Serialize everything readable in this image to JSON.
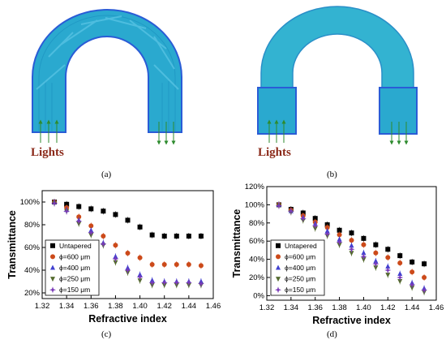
{
  "panel_labels": [
    "(a)",
    "(b)",
    "(c)",
    "(d)"
  ],
  "lights_labels": [
    "Lights",
    "Lights"
  ],
  "colors": {
    "fiber_light": "#2aa9cf",
    "fiber_dark": "#1a7fb3",
    "fiber_edge": "#2a5cd6",
    "arrow": "#2e8b2e",
    "lights_text": "#8b2a1a"
  },
  "chart_data": [
    {
      "type": "scatter",
      "panel": "(c)",
      "xlabel": "Refractive index",
      "ylabel": "Transmittance",
      "xlim": [
        1.32,
        1.46
      ],
      "ylim": [
        15,
        110
      ],
      "x_ticks": [
        "1.32",
        "1.34",
        "1.36",
        "1.38",
        "1.40",
        "1.42",
        "1.44",
        "1.46"
      ],
      "y_ticks": [
        "20%",
        "40%",
        "60%",
        "80%",
        "100%"
      ],
      "y_tick_values": [
        20,
        40,
        60,
        80,
        100
      ],
      "legend_position": "bottom-left",
      "x": [
        1.33,
        1.34,
        1.35,
        1.36,
        1.37,
        1.38,
        1.39,
        1.4,
        1.41,
        1.42,
        1.43,
        1.44,
        1.45
      ],
      "series": [
        {
          "name": "Untapered",
          "marker": "square",
          "color": "#000000",
          "values": [
            100,
            98,
            96,
            94,
            92,
            89,
            84,
            78,
            71,
            70,
            70,
            70,
            70
          ]
        },
        {
          "name": "ϕ=600 μm",
          "marker": "circle",
          "color": "#cc4a1a",
          "values": [
            100,
            95,
            87,
            79,
            70,
            62,
            55,
            51,
            45,
            45,
            45,
            45,
            44
          ]
        },
        {
          "name": "ϕ=400 μm",
          "marker": "triangle-up",
          "color": "#4040d0",
          "values": [
            100,
            93,
            84,
            75,
            64,
            52,
            42,
            36,
            31,
            30,
            30,
            30,
            30
          ]
        },
        {
          "name": "ϕ=250 μm",
          "marker": "triangle-down",
          "color": "#556b2f",
          "values": [
            99,
            92,
            81,
            71,
            62,
            47,
            38,
            31,
            27,
            27,
            27,
            27,
            27
          ]
        },
        {
          "name": "ϕ=150 μm",
          "marker": "star",
          "color": "#7a3ab8",
          "values": [
            99,
            92,
            83,
            73,
            63,
            50,
            40,
            34,
            29,
            29,
            29,
            29,
            28
          ]
        }
      ]
    },
    {
      "type": "scatter",
      "panel": "(d)",
      "xlabel": "Refractive index",
      "ylabel": "Transmittance",
      "xlim": [
        1.32,
        1.46
      ],
      "ylim": [
        -5,
        120
      ],
      "x_ticks": [
        "1.32",
        "1.34",
        "1.36",
        "1.38",
        "1.40",
        "1.42",
        "1.44",
        "1.46"
      ],
      "y_ticks": [
        "0%",
        "20%",
        "40%",
        "60%",
        "80%",
        "100%",
        "120%"
      ],
      "y_tick_values": [
        0,
        20,
        40,
        60,
        80,
        100,
        120
      ],
      "legend_position": "bottom-left",
      "x": [
        1.33,
        1.34,
        1.35,
        1.36,
        1.37,
        1.38,
        1.39,
        1.4,
        1.41,
        1.42,
        1.43,
        1.44,
        1.45
      ],
      "series": [
        {
          "name": "Untapered",
          "marker": "square",
          "color": "#000000",
          "values": [
            100,
            95,
            91,
            85,
            78,
            72,
            69,
            63,
            56,
            51,
            44,
            37,
            35
          ]
        },
        {
          "name": "ϕ=600 μm",
          "marker": "circle",
          "color": "#cc4a1a",
          "values": [
            100,
            94,
            88,
            81,
            75,
            67,
            61,
            56,
            47,
            42,
            36,
            26,
            20
          ]
        },
        {
          "name": "ϕ=400 μm",
          "marker": "triangle-up",
          "color": "#4040d0",
          "values": [
            100,
            93,
            86,
            79,
            71,
            62,
            55,
            47,
            38,
            32,
            24,
            14,
            8
          ]
        },
        {
          "name": "ϕ=250 μm",
          "marker": "triangle-down",
          "color": "#556b2f",
          "values": [
            99,
            92,
            83,
            74,
            66,
            56,
            47,
            40,
            31,
            23,
            16,
            9,
            4
          ]
        },
        {
          "name": "ϕ=150 μm",
          "marker": "star",
          "color": "#7a3ab8",
          "values": [
            99,
            93,
            85,
            77,
            68,
            59,
            51,
            43,
            35,
            28,
            20,
            12,
            6
          ]
        }
      ]
    }
  ]
}
